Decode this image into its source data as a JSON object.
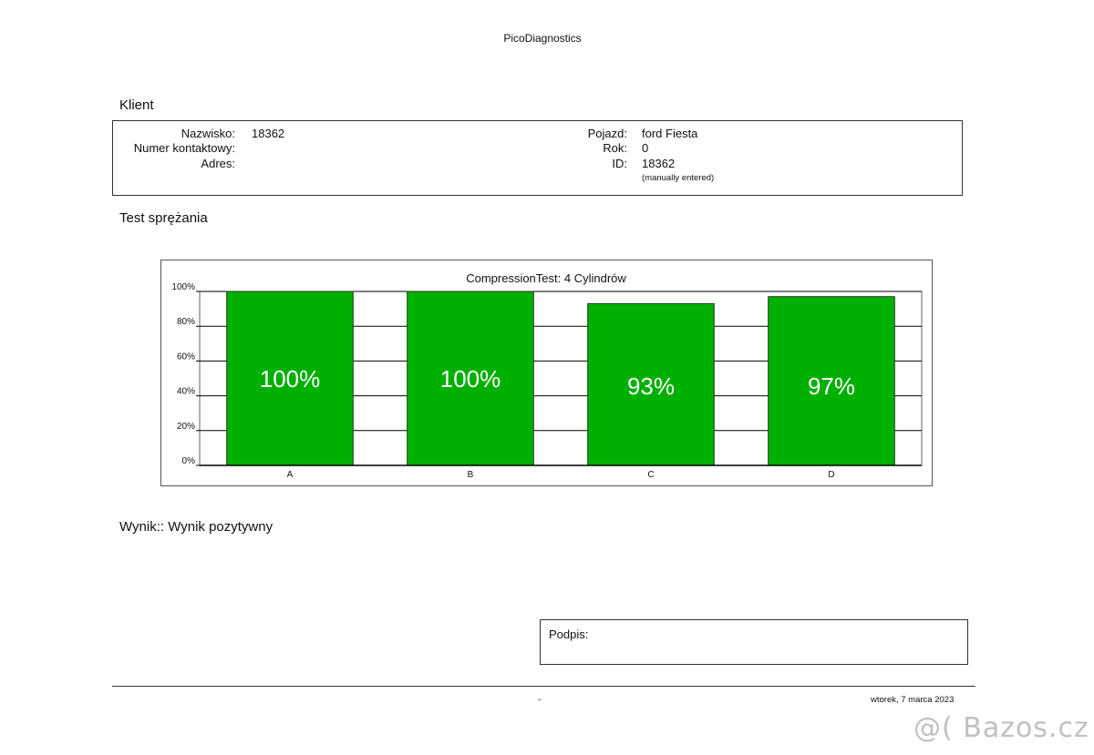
{
  "header": {
    "title": "PicoDiagnostics"
  },
  "client": {
    "section_title": "Klient",
    "nazwisko_label": "Nazwisko:",
    "nazwisko_value": "18362",
    "kontakt_label": "Numer kontaktowy:",
    "kontakt_value": "",
    "adres_label": "Adres:",
    "adres_value": "",
    "pojazd_label": "Pojazd:",
    "pojazd_value": "ford Fiesta",
    "rok_label": "Rok:",
    "rok_value": "0",
    "id_label": "ID:",
    "id_value": "18362",
    "id_note": "(manually entered)"
  },
  "test": {
    "section_title": "Test sprężania"
  },
  "chart_data": {
    "type": "bar",
    "title": "CompressionTest: 4 Cylindrów",
    "categories": [
      "A",
      "B",
      "C",
      "D"
    ],
    "values": [
      100,
      100,
      93,
      97
    ],
    "value_labels": [
      "100%",
      "100%",
      "93%",
      "97%"
    ],
    "ylim": [
      0,
      100
    ],
    "yticks": [
      0,
      20,
      40,
      60,
      80,
      100
    ],
    "ytick_labels": [
      "0%",
      "20%",
      "40%",
      "60%",
      "80%",
      "100%"
    ],
    "xlabel": "",
    "ylabel": "",
    "grid": true,
    "bar_color": "#00b000"
  },
  "result": {
    "text": "Wynik:: Wynik pozytywny"
  },
  "signature": {
    "label": "Podpis:"
  },
  "footer": {
    "dash": "-",
    "date": "wtorek, 7 marca 2023"
  },
  "watermark": {
    "text": "@( Bazos.cz"
  }
}
